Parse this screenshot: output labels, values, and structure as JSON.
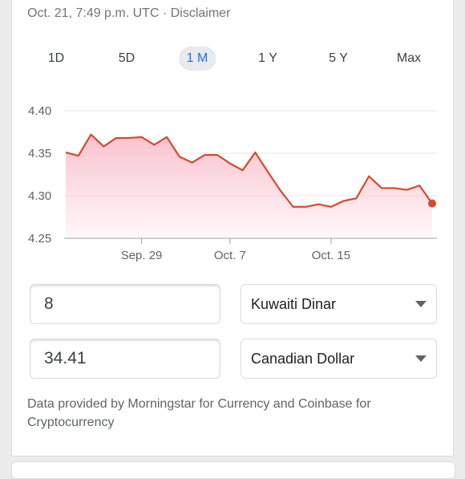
{
  "timestamp": "Oct. 21, 7:49 p.m. UTC · Disclaimer",
  "ranges": [
    {
      "label": "1D",
      "active": false
    },
    {
      "label": "5D",
      "active": false
    },
    {
      "label": "1 M",
      "active": true
    },
    {
      "label": "1 Y",
      "active": false
    },
    {
      "label": "5 Y",
      "active": false
    },
    {
      "label": "Max",
      "active": false
    }
  ],
  "chart_data": {
    "type": "area",
    "yticks": [
      "4.40",
      "4.35",
      "4.30",
      "4.25"
    ],
    "ylim": [
      4.25,
      4.4
    ],
    "xticks": [
      {
        "label": "Sep. 29",
        "x": 6
      },
      {
        "label": "Oct. 7",
        "x": 13
      },
      {
        "label": "Oct. 15",
        "x": 21
      }
    ],
    "y": [
      4.351,
      4.347,
      4.372,
      4.358,
      4.368,
      4.368,
      4.369,
      4.36,
      4.369,
      4.346,
      4.339,
      4.348,
      4.348,
      4.338,
      4.33,
      4.351,
      4.328,
      4.306,
      4.287,
      4.287,
      4.29,
      4.287,
      4.294,
      4.297,
      4.323,
      4.309,
      4.309,
      4.307,
      4.312,
      4.291
    ],
    "line_color": "#d9482b",
    "fill_color": "#f9c0cc",
    "grid": true
  },
  "converter": {
    "from_amount": "8",
    "from_currency": "Kuwaiti Dinar",
    "to_amount": "34.41",
    "to_currency": "Canadian Dollar"
  },
  "footer": "Data provided by Morningstar for Currency and Coinbase for Cryptocurrency"
}
